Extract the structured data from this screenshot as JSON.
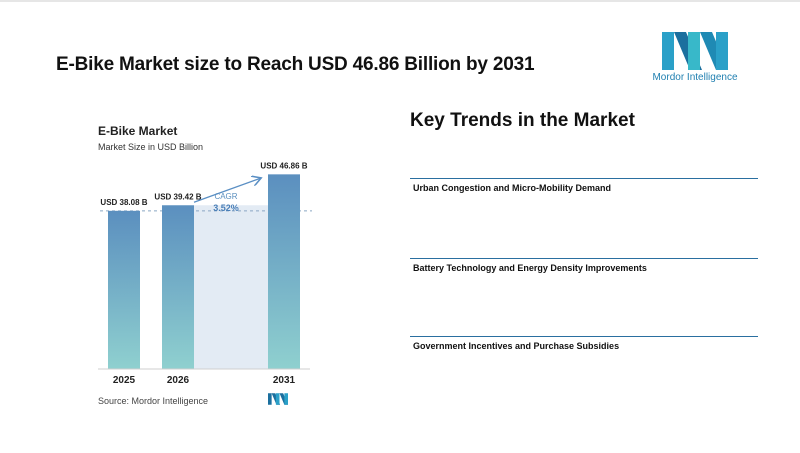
{
  "header": {
    "title": "E-Bike Market size to Reach USD 46.86 Billion by 2031",
    "brand_name": "Mordor Intelligence",
    "brand_icon": "mordor-intelligence-logo"
  },
  "chart_data": {
    "type": "bar",
    "title": "E-Bike Market",
    "subtitle": "Market Size in USD Billion",
    "categories": [
      "2025",
      "2026",
      "2031"
    ],
    "values": [
      38.08,
      39.42,
      46.86
    ],
    "value_labels": [
      "USD 38.08 B",
      "USD 39.42 B",
      "USD 46.86 B"
    ],
    "annotation": {
      "label": "CAGR",
      "value": "3.52%"
    },
    "ylim": [
      0,
      52
    ],
    "grid": false,
    "colors": {
      "bar_top": "#5b8fbf",
      "bar_bottom": "#8fd0cf",
      "shade": "#e3ebf4",
      "accent": "#5a8fc4"
    },
    "source": "Source:  Mordor Intelligence"
  },
  "trends": {
    "title": "Key Trends in the Market",
    "items": [
      "Urban Congestion and Micro-Mobility Demand",
      "Battery Technology and Energy Density Improvements",
      "Government Incentives and Purchase Subsidies"
    ]
  }
}
